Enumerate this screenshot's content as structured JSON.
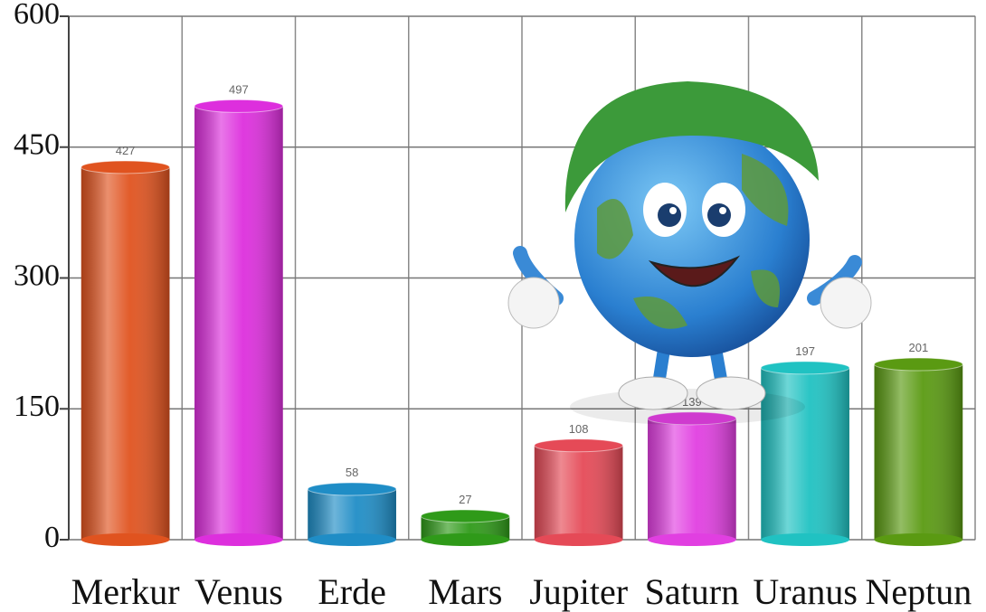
{
  "chart_data": {
    "type": "bar",
    "categories": [
      "Merkur",
      "Venus",
      "Erde",
      "Mars",
      "Jupiter",
      "Saturn",
      "Uranus",
      "Neptun"
    ],
    "values": [
      427,
      497,
      58,
      27,
      108,
      139,
      197,
      201
    ],
    "colors": [
      "#e0531f",
      "#dd2fdd",
      "#1f8dc6",
      "#2f9a19",
      "#e54a57",
      "#e13fe1",
      "#20c2c2",
      "#5a9a12"
    ],
    "ylim": [
      0,
      600
    ],
    "yticks": [
      0,
      150,
      300,
      450,
      600
    ],
    "grid": true
  }
}
